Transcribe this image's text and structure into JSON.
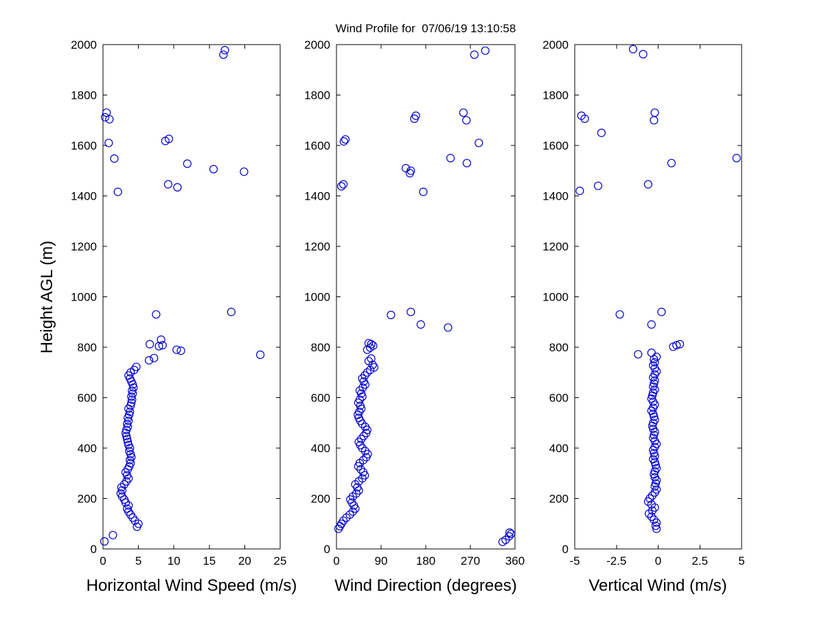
{
  "figure": {
    "background": "#FFFFFF",
    "axes_color": "#000000",
    "marker_color": "#0000CC"
  },
  "chart_data": [
    {
      "type": "scatter",
      "title": "",
      "xlabel": "Horizontal Wind Speed (m/s)",
      "ylabel": "Height AGL (m)",
      "xlim": [
        0,
        25
      ],
      "ylim": [
        0,
        2000
      ],
      "xticks": [
        0,
        5,
        10,
        15,
        20,
        25
      ],
      "yticks": [
        0,
        200,
        400,
        600,
        800,
        1000,
        1200,
        1400,
        1600,
        1800,
        2000
      ],
      "grid": false,
      "legend": false,
      "marker": "open-circle",
      "marker_color": "#0000CC",
      "points": [
        [
          0.2,
          30
        ],
        [
          1.4,
          55
        ],
        [
          4.8,
          88
        ],
        [
          5.0,
          100
        ],
        [
          4.5,
          112
        ],
        [
          4.2,
          124
        ],
        [
          3.9,
          136
        ],
        [
          3.6,
          148
        ],
        [
          3.4,
          160
        ],
        [
          3.6,
          172
        ],
        [
          3.2,
          184
        ],
        [
          3.0,
          196
        ],
        [
          2.7,
          208
        ],
        [
          2.5,
          220
        ],
        [
          2.7,
          232
        ],
        [
          2.6,
          244
        ],
        [
          3.0,
          256
        ],
        [
          3.3,
          268
        ],
        [
          3.6,
          280
        ],
        [
          3.4,
          292
        ],
        [
          3.2,
          304
        ],
        [
          3.5,
          316
        ],
        [
          3.7,
          328
        ],
        [
          3.9,
          340
        ],
        [
          3.8,
          352
        ],
        [
          4.0,
          364
        ],
        [
          3.9,
          376
        ],
        [
          3.7,
          388
        ],
        [
          3.8,
          400
        ],
        [
          3.6,
          412
        ],
        [
          3.5,
          424
        ],
        [
          3.4,
          436
        ],
        [
          3.3,
          448
        ],
        [
          3.2,
          460
        ],
        [
          3.3,
          472
        ],
        [
          3.5,
          484
        ],
        [
          3.4,
          496
        ],
        [
          3.6,
          508
        ],
        [
          3.5,
          520
        ],
        [
          3.7,
          532
        ],
        [
          3.8,
          544
        ],
        [
          3.6,
          556
        ],
        [
          3.9,
          568
        ],
        [
          4.0,
          580
        ],
        [
          4.1,
          592
        ],
        [
          4.0,
          604
        ],
        [
          4.2,
          616
        ],
        [
          4.1,
          628
        ],
        [
          4.3,
          640
        ],
        [
          4.2,
          652
        ],
        [
          4.0,
          664
        ],
        [
          3.8,
          676
        ],
        [
          3.6,
          688
        ],
        [
          3.9,
          700
        ],
        [
          4.4,
          710
        ],
        [
          4.7,
          722
        ],
        [
          6.5,
          748
        ],
        [
          7.2,
          757
        ],
        [
          6.6,
          812
        ],
        [
          7.9,
          804
        ],
        [
          8.4,
          808
        ],
        [
          8.2,
          830
        ],
        [
          10.4,
          790
        ],
        [
          11.0,
          786
        ],
        [
          22.2,
          770
        ],
        [
          7.5,
          930
        ],
        [
          18.1,
          940
        ],
        [
          17.2,
          1978
        ],
        [
          17.0,
          1960
        ],
        [
          0.5,
          1730
        ],
        [
          0.3,
          1712
        ],
        [
          0.9,
          1704
        ],
        [
          0.8,
          1610
        ],
        [
          1.6,
          1548
        ],
        [
          9.3,
          1626
        ],
        [
          8.8,
          1618
        ],
        [
          11.9,
          1528
        ],
        [
          15.6,
          1506
        ],
        [
          19.9,
          1496
        ],
        [
          9.2,
          1446
        ],
        [
          10.5,
          1434
        ],
        [
          2.1,
          1416
        ]
      ]
    },
    {
      "type": "scatter",
      "title": "Wind Profile for  07/06/19 13:10:58",
      "xlabel": "Wind Direction (degrees)",
      "ylabel": "",
      "xlim": [
        0,
        360
      ],
      "ylim": [
        0,
        2000
      ],
      "xticks": [
        0,
        90,
        180,
        270,
        360
      ],
      "yticks": [
        0,
        200,
        400,
        600,
        800,
        1000,
        1200,
        1400,
        1600,
        1800,
        2000
      ],
      "grid": false,
      "legend": false,
      "marker": "open-circle",
      "marker_color": "#0000CC",
      "points": [
        [
          335,
          28
        ],
        [
          341,
          36
        ],
        [
          348,
          50
        ],
        [
          352,
          60
        ],
        [
          349,
          65
        ],
        [
          4,
          80
        ],
        [
          7,
          90
        ],
        [
          10,
          100
        ],
        [
          14,
          112
        ],
        [
          20,
          124
        ],
        [
          27,
          136
        ],
        [
          33,
          148
        ],
        [
          38,
          160
        ],
        [
          35,
          172
        ],
        [
          31,
          184
        ],
        [
          28,
          196
        ],
        [
          33,
          208
        ],
        [
          40,
          220
        ],
        [
          45,
          232
        ],
        [
          42,
          244
        ],
        [
          38,
          256
        ],
        [
          45,
          268
        ],
        [
          52,
          280
        ],
        [
          57,
          292
        ],
        [
          54,
          304
        ],
        [
          49,
          316
        ],
        [
          44,
          328
        ],
        [
          47,
          340
        ],
        [
          54,
          352
        ],
        [
          60,
          364
        ],
        [
          63,
          376
        ],
        [
          58,
          388
        ],
        [
          52,
          400
        ],
        [
          48,
          412
        ],
        [
          45,
          424
        ],
        [
          50,
          436
        ],
        [
          55,
          448
        ],
        [
          60,
          460
        ],
        [
          62,
          472
        ],
        [
          58,
          484
        ],
        [
          52,
          496
        ],
        [
          48,
          508
        ],
        [
          45,
          520
        ],
        [
          43,
          532
        ],
        [
          46,
          544
        ],
        [
          50,
          556
        ],
        [
          48,
          568
        ],
        [
          44,
          580
        ],
        [
          47,
          592
        ],
        [
          52,
          604
        ],
        [
          50,
          616
        ],
        [
          47,
          628
        ],
        [
          53,
          640
        ],
        [
          58,
          652
        ],
        [
          55,
          664
        ],
        [
          52,
          676
        ],
        [
          57,
          688
        ],
        [
          62,
          700
        ],
        [
          68,
          710
        ],
        [
          76,
          720
        ],
        [
          73,
          730
        ],
        [
          65,
          745
        ],
        [
          70,
          755
        ],
        [
          62,
          790
        ],
        [
          68,
          798
        ],
        [
          74,
          806
        ],
        [
          70,
          812
        ],
        [
          65,
          816
        ],
        [
          110,
          928
        ],
        [
          150,
          940
        ],
        [
          170,
          890
        ],
        [
          225,
          878
        ],
        [
          10,
          1438
        ],
        [
          14,
          1446
        ],
        [
          175,
          1416
        ],
        [
          140,
          1510
        ],
        [
          150,
          1500
        ],
        [
          148,
          1490
        ],
        [
          230,
          1550
        ],
        [
          263,
          1530
        ],
        [
          287,
          1610
        ],
        [
          18,
          1624
        ],
        [
          15,
          1616
        ],
        [
          160,
          1718
        ],
        [
          157,
          1706
        ],
        [
          256,
          1730
        ],
        [
          262,
          1700
        ],
        [
          300,
          1976
        ],
        [
          278,
          1960
        ]
      ]
    },
    {
      "type": "scatter",
      "title": "",
      "xlabel": "Vertical Wind (m/s)",
      "ylabel": "",
      "xlim": [
        -5,
        5
      ],
      "ylim": [
        0,
        2000
      ],
      "xticks": [
        -5,
        -2.5,
        0,
        2.5,
        5
      ],
      "yticks": [
        0,
        200,
        400,
        600,
        800,
        1000,
        1200,
        1400,
        1600,
        1800,
        2000
      ],
      "grid": false,
      "legend": false,
      "marker": "open-circle",
      "marker_color": "#0000CC",
      "points": [
        [
          -0.1,
          80
        ],
        [
          -0.15,
          92
        ],
        [
          -0.1,
          104
        ],
        [
          -0.25,
          116
        ],
        [
          -0.4,
          128
        ],
        [
          -0.55,
          140
        ],
        [
          -0.35,
          152
        ],
        [
          -0.2,
          164
        ],
        [
          -0.4,
          176
        ],
        [
          -0.6,
          188
        ],
        [
          -0.5,
          200
        ],
        [
          -0.35,
          212
        ],
        [
          -0.2,
          224
        ],
        [
          -0.1,
          236
        ],
        [
          -0.2,
          248
        ],
        [
          -0.15,
          260
        ],
        [
          -0.1,
          272
        ],
        [
          -0.2,
          284
        ],
        [
          -0.25,
          296
        ],
        [
          -0.2,
          308
        ],
        [
          -0.1,
          320
        ],
        [
          -0.15,
          332
        ],
        [
          -0.2,
          344
        ],
        [
          -0.3,
          356
        ],
        [
          -0.2,
          368
        ],
        [
          -0.25,
          380
        ],
        [
          -0.3,
          392
        ],
        [
          -0.2,
          404
        ],
        [
          -0.1,
          416
        ],
        [
          -0.2,
          428
        ],
        [
          -0.3,
          440
        ],
        [
          -0.25,
          452
        ],
        [
          -0.2,
          464
        ],
        [
          -0.3,
          476
        ],
        [
          -0.35,
          488
        ],
        [
          -0.3,
          500
        ],
        [
          -0.2,
          512
        ],
        [
          -0.25,
          524
        ],
        [
          -0.3,
          536
        ],
        [
          -0.4,
          548
        ],
        [
          -0.3,
          560
        ],
        [
          -0.2,
          572
        ],
        [
          -0.3,
          584
        ],
        [
          -0.4,
          596
        ],
        [
          -0.35,
          608
        ],
        [
          -0.3,
          620
        ],
        [
          -0.2,
          632
        ],
        [
          -0.3,
          644
        ],
        [
          -0.25,
          656
        ],
        [
          -0.2,
          668
        ],
        [
          -0.3,
          680
        ],
        [
          -0.2,
          692
        ],
        [
          -0.1,
          704
        ],
        [
          -0.2,
          716
        ],
        [
          -0.3,
          728
        ],
        [
          -0.2,
          740
        ],
        [
          -0.25,
          752
        ],
        [
          -0.1,
          762
        ],
        [
          -1.2,
          772
        ],
        [
          -0.4,
          778
        ],
        [
          0.9,
          802
        ],
        [
          1.1,
          808
        ],
        [
          1.3,
          812
        ],
        [
          -2.3,
          930
        ],
        [
          0.2,
          940
        ],
        [
          -0.4,
          890
        ],
        [
          -4.7,
          1420
        ],
        [
          -3.6,
          1440
        ],
        [
          -0.6,
          1446
        ],
        [
          0.8,
          1530
        ],
        [
          4.7,
          1550
        ],
        [
          -3.4,
          1650
        ],
        [
          -0.25,
          1700
        ],
        [
          -0.2,
          1730
        ],
        [
          -4.6,
          1718
        ],
        [
          -4.4,
          1706
        ],
        [
          -1.5,
          1982
        ],
        [
          -0.9,
          1962
        ]
      ]
    }
  ]
}
